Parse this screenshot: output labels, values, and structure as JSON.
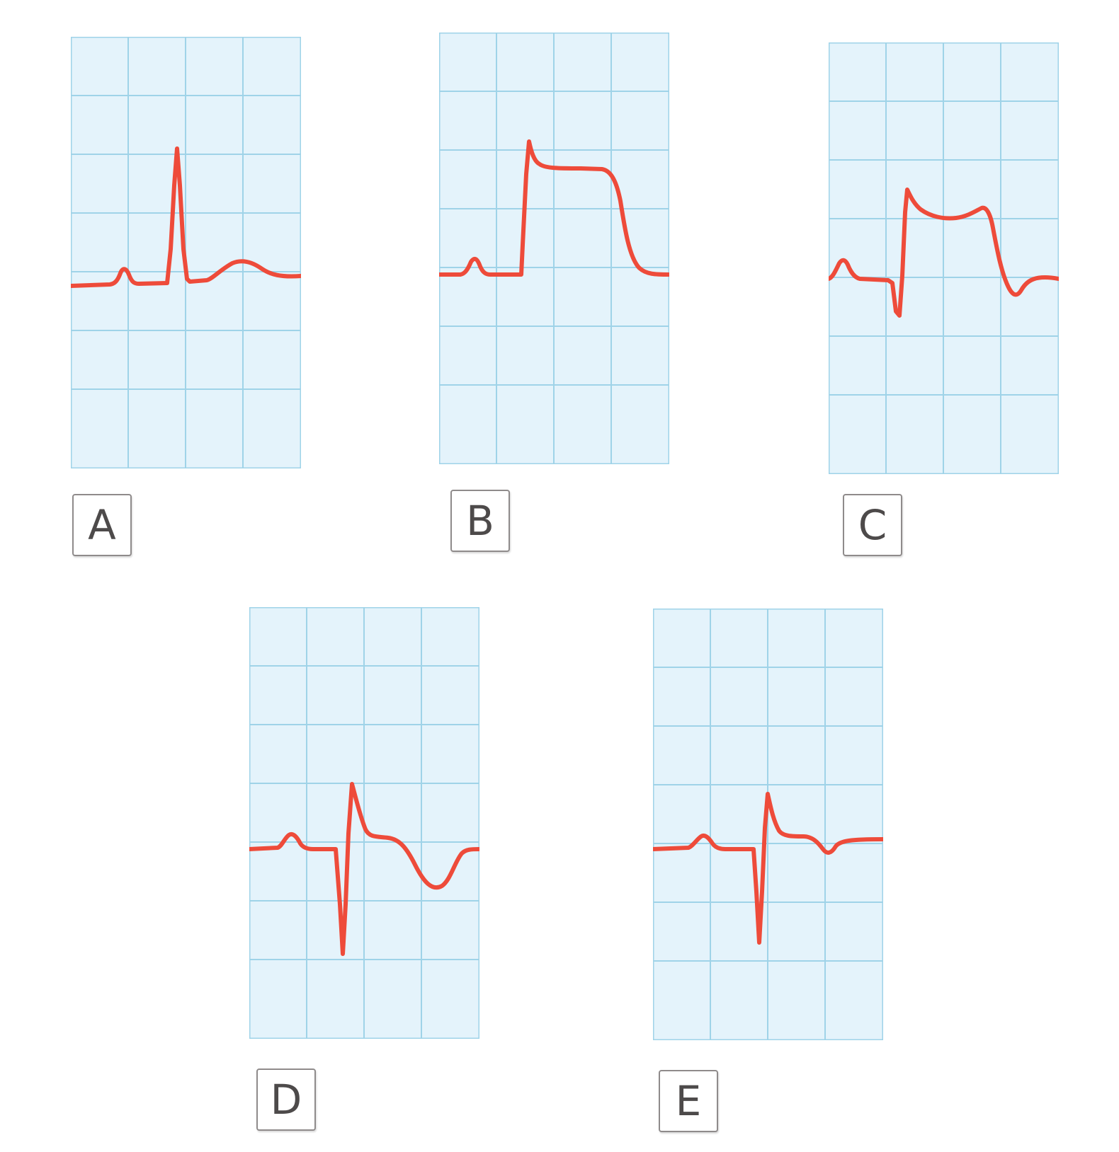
{
  "colors": {
    "grid_background": "#e4f3fb",
    "grid_line": "#9fd3e8",
    "waveform": "#ee4b3a",
    "label_border": "#8f8b8b",
    "label_text": "#4d4a4a"
  },
  "panels": [
    {
      "id": "a",
      "label": "A",
      "waveform": "normal-ecg-complex"
    },
    {
      "id": "b",
      "label": "B",
      "waveform": "hyperacute-st-elevation"
    },
    {
      "id": "c",
      "label": "C",
      "waveform": "st-elevation-with-q-wave"
    },
    {
      "id": "d",
      "label": "D",
      "waveform": "deep-q-wave-inverted-t"
    },
    {
      "id": "e",
      "label": "E",
      "waveform": "q-wave-shallow-t-inversion"
    }
  ]
}
